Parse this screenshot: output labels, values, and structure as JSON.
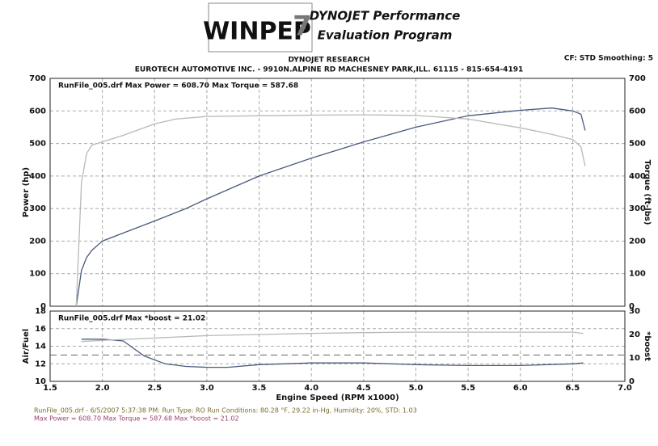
{
  "header": {
    "logo": "WINPEP",
    "logo_number": "7",
    "brand": "DYNOJET Performance",
    "program": "Evaluation Program",
    "company": "DYNOJET RESEARCH",
    "address": "EUROTECH AUTOMOTIVE INC. - 9910N.ALPINE RD MACHESNEY PARK,ILL.  61115 - 815-654-4191",
    "settings": "CF: STD  Smoothing: 5"
  },
  "footer": {
    "run_info": "RunFile_005.drf - 6/5/2007 5:37:38 PM: Run Type: RO  Run Conditions: 80.28 °F, 29.22 in-Hg,  Humidity: 20%,  STD: 1.03",
    "max_info": "Max Power = 608.70  Max Torque = 587.68  Max *boost = 21.02"
  },
  "chart_data": [
    {
      "type": "line",
      "annotation": "RunFile_005.drf Max Power = 608.70    Max Torque = 587.68",
      "ylabel": "Power (hp)",
      "y2label": "Torque (ft-lbs)",
      "xlim": [
        1.5,
        7.0
      ],
      "xticks": [
        1.5,
        2,
        2.5,
        3,
        3.5,
        4,
        4.5,
        5,
        5.5,
        6,
        6.5,
        7
      ],
      "ylim": [
        0,
        700
      ],
      "yticks": [
        0,
        100,
        200,
        300,
        400,
        500,
        600,
        700
      ],
      "y2lim": [
        0,
        700
      ],
      "y2ticks": [
        0,
        100,
        200,
        300,
        400,
        500,
        600,
        700
      ],
      "grid": true,
      "series": [
        {
          "name": "Power",
          "color": "#4a5a7e",
          "x": [
            1.75,
            1.8,
            1.85,
            1.9,
            2.0,
            2.2,
            2.5,
            2.8,
            3.0,
            3.5,
            4.0,
            4.5,
            5.0,
            5.5,
            6.0,
            6.3,
            6.5,
            6.58,
            6.62
          ],
          "values": [
            0,
            110,
            150,
            172,
            200,
            225,
            262,
            300,
            330,
            400,
            455,
            505,
            550,
            585,
            602,
            609,
            600,
            590,
            540
          ]
        },
        {
          "name": "Torque",
          "axis": "y2",
          "color": "#b8b8b8",
          "x": [
            1.75,
            1.8,
            1.85,
            1.9,
            2.0,
            2.2,
            2.5,
            2.7,
            3.0,
            3.5,
            4.0,
            4.5,
            5.0,
            5.5,
            6.0,
            6.3,
            6.5,
            6.58,
            6.62
          ],
          "values": [
            0,
            380,
            470,
            495,
            505,
            525,
            560,
            575,
            583,
            585,
            587,
            588,
            586,
            575,
            548,
            528,
            512,
            490,
            430
          ]
        }
      ]
    },
    {
      "type": "line",
      "annotation": "RunFile_005.drf Max *boost = 21.02",
      "ylabel": "Air/Fuel",
      "y2label": "*boost",
      "xlabel": "Engine Speed (RPM x1000)",
      "xlim": [
        1.5,
        7.0
      ],
      "xticks": [
        1.5,
        {
          "value": 2,
          "label": "2.0"
        },
        2.5,
        {
          "value": 3,
          "label": "3.0"
        },
        3.5,
        {
          "value": 4,
          "label": "4.0"
        },
        4.5,
        {
          "value": 5,
          "label": "5.0"
        },
        5.5,
        {
          "value": 6,
          "label": "6.0"
        },
        6.5,
        {
          "value": 7,
          "label": "7.0"
        }
      ],
      "ylim": [
        10,
        18
      ],
      "yticks": [
        10,
        12,
        14,
        16,
        18
      ],
      "y2lim": [
        0,
        30
      ],
      "y2ticks": [
        0,
        10,
        20,
        30
      ],
      "grid": true,
      "reference": 13,
      "series": [
        {
          "name": "Air/Fuel",
          "color": "#4a5a7e",
          "x": [
            1.8,
            2.0,
            2.2,
            2.4,
            2.6,
            2.8,
            3.0,
            3.2,
            3.5,
            4.0,
            4.5,
            5.0,
            5.5,
            6.0,
            6.5,
            6.6
          ],
          "values": [
            14.8,
            14.8,
            14.6,
            12.9,
            12.0,
            11.7,
            11.6,
            11.6,
            11.9,
            12.1,
            12.1,
            11.9,
            11.8,
            11.8,
            12.0,
            12.1
          ]
        },
        {
          "name": "*boost",
          "axis": "y2",
          "color": "#b8b8b8",
          "x": [
            1.8,
            2.0,
            2.5,
            3.0,
            3.5,
            4.0,
            4.5,
            5.0,
            5.5,
            6.0,
            6.5,
            6.6
          ],
          "values": [
            17,
            17.5,
            18.5,
            19.5,
            20,
            20.5,
            20.8,
            21,
            21,
            21,
            21,
            20.5
          ]
        }
      ]
    }
  ]
}
